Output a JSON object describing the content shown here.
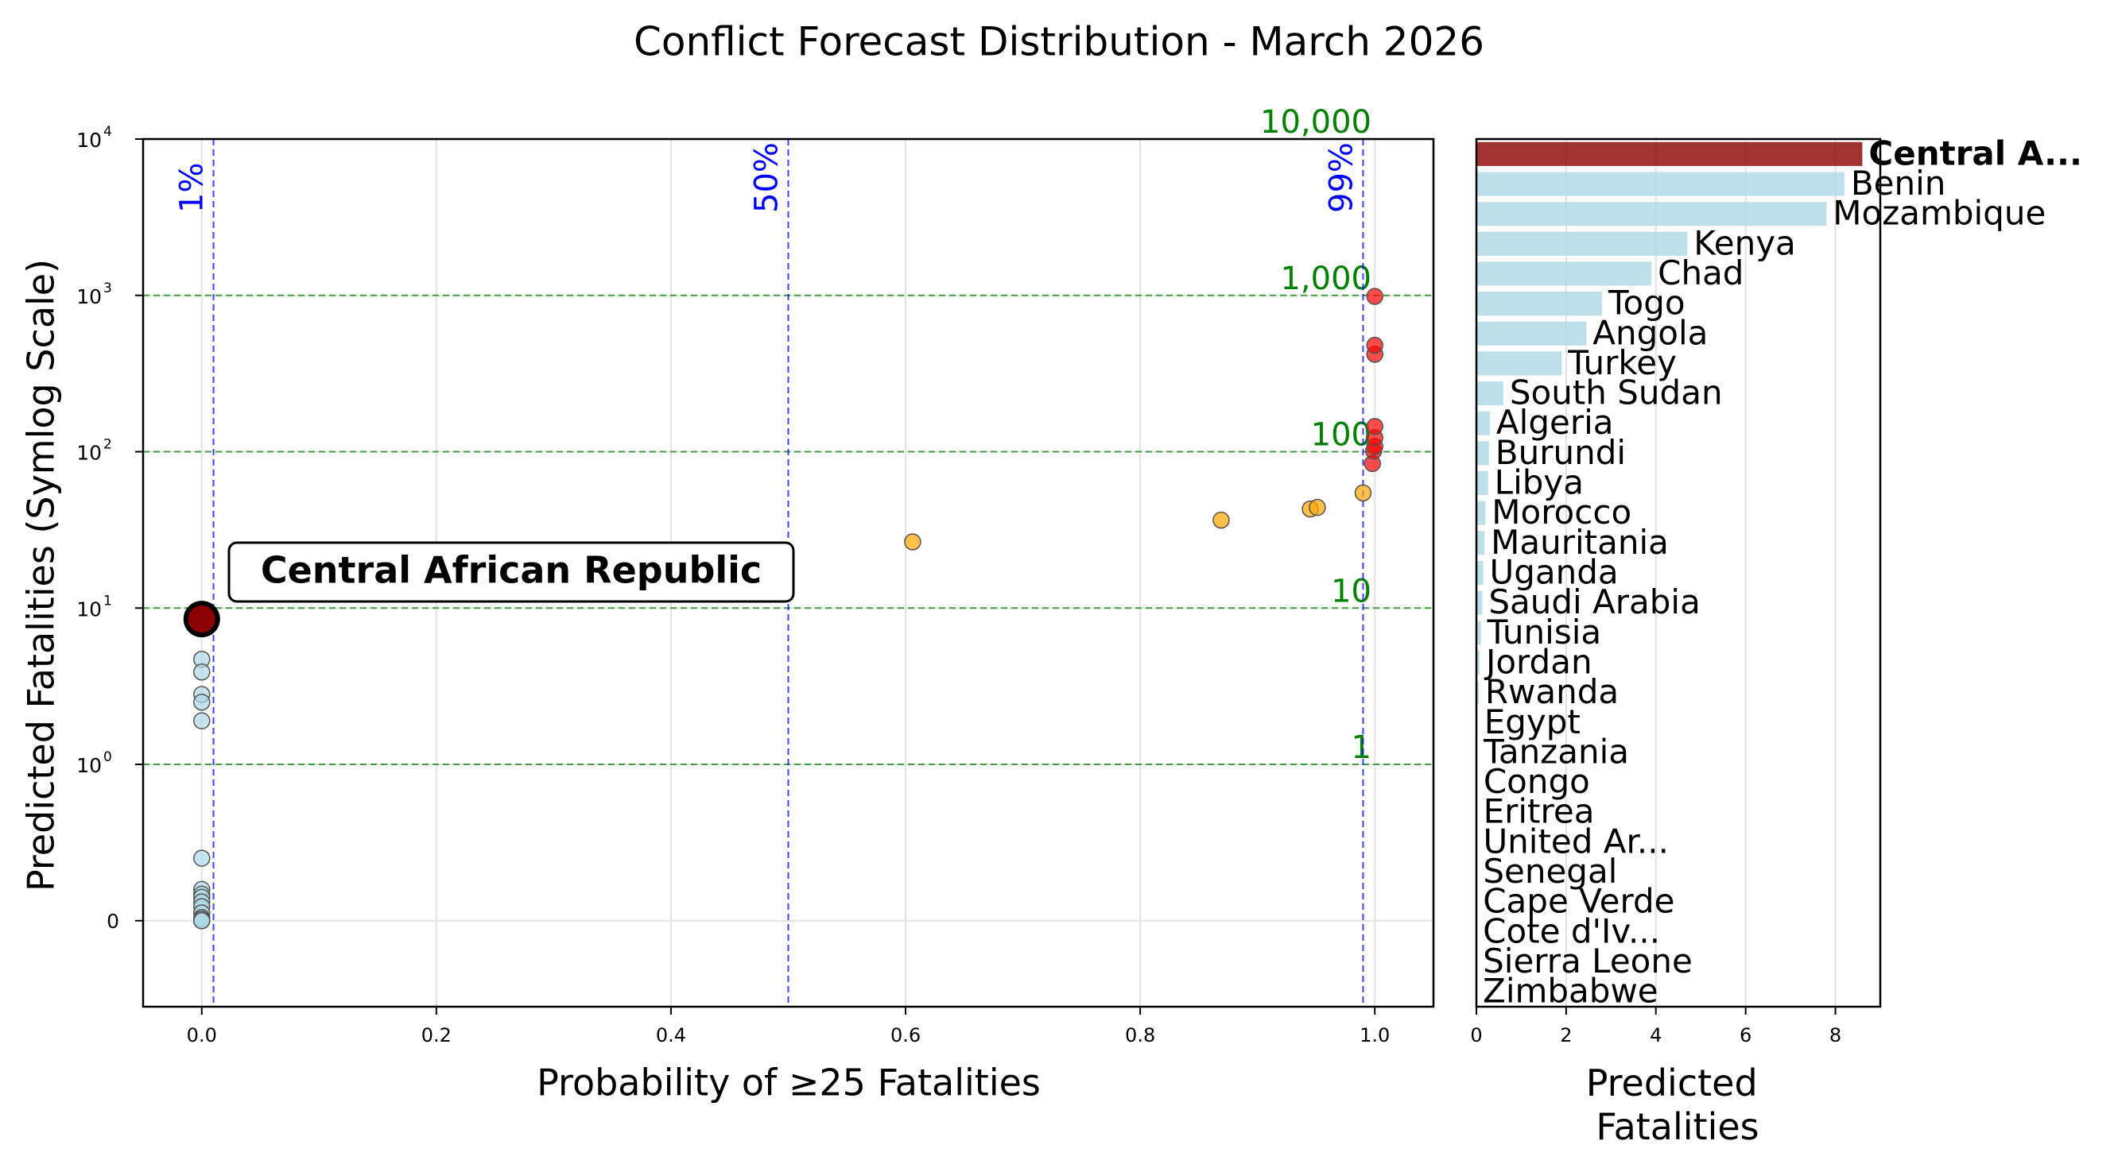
{
  "figure": {
    "title": "Conflict Forecast Distribution - March 2026"
  },
  "chart_data": [
    {
      "type": "scatter",
      "xlabel": "Probability of ≥25 Fatalities",
      "ylabel": "Predicted Fatalities (Symlog Scale)",
      "x_scale": "linear",
      "y_scale": "symlog",
      "xlim": [
        -0.05,
        1.05
      ],
      "ylim": [
        -0.55,
        10000
      ],
      "x_ticks": [
        0.0,
        0.2,
        0.4,
        0.6,
        0.8,
        1.0
      ],
      "x_tick_labels": [
        "0.0",
        "0.2",
        "0.4",
        "0.6",
        "0.8",
        "1.0"
      ],
      "y_ticks": [
        0,
        1,
        10,
        100,
        1000,
        10000
      ],
      "y_tick_labels": [
        {
          "base": "0",
          "exp": ""
        },
        {
          "base": "10",
          "exp": "0"
        },
        {
          "base": "10",
          "exp": "1"
        },
        {
          "base": "10",
          "exp": "2"
        },
        {
          "base": "10",
          "exp": "3"
        },
        {
          "base": "10",
          "exp": "4"
        }
      ],
      "grid": true,
      "vertical_reference_lines": [
        {
          "x": 0.01,
          "label": "1%",
          "color": "#0000ff"
        },
        {
          "x": 0.5,
          "label": "50%",
          "color": "#0000ff"
        },
        {
          "x": 0.99,
          "label": "99%",
          "color": "#0000ff"
        }
      ],
      "horizontal_reference_lines": [
        {
          "y": 1,
          "label": "1",
          "color": "#008000"
        },
        {
          "y": 10,
          "label": "10",
          "color": "#008000"
        },
        {
          "y": 100,
          "label": "100",
          "color": "#008000"
        },
        {
          "y": 1000,
          "label": "1,000",
          "color": "#008000"
        },
        {
          "y": 10000,
          "label": "10,000",
          "color": "#008000"
        }
      ],
      "colors": {
        "low": "#add8e6",
        "medium": "#ffa500",
        "high": "#ff0000",
        "highlight": "#8b0000"
      },
      "points": [
        {
          "x": 0.0,
          "y": 4.7,
          "group": "low"
        },
        {
          "x": 0.0,
          "y": 3.9,
          "group": "low"
        },
        {
          "x": 0.0,
          "y": 2.8,
          "group": "low"
        },
        {
          "x": 0.0,
          "y": 2.5,
          "group": "low"
        },
        {
          "x": 0.0,
          "y": 1.9,
          "group": "low"
        },
        {
          "x": 0.0,
          "y": 0.4,
          "group": "low"
        },
        {
          "x": 0.0,
          "y": 0.2,
          "group": "low"
        },
        {
          "x": 0.0,
          "y": 0.17,
          "group": "low"
        },
        {
          "x": 0.0,
          "y": 0.15,
          "group": "low"
        },
        {
          "x": 0.0,
          "y": 0.12,
          "group": "low"
        },
        {
          "x": 0.0,
          "y": 0.09,
          "group": "low"
        },
        {
          "x": 0.0,
          "y": 0.05,
          "group": "low"
        },
        {
          "x": 0.0,
          "y": 0.02,
          "group": "low"
        },
        {
          "x": 0.0,
          "y": 0.01,
          "group": "low"
        },
        {
          "x": 0.0,
          "y": 0.0,
          "group": "low"
        },
        {
          "x": 0.0,
          "y": 0.0,
          "group": "low"
        },
        {
          "x": 0.606,
          "y": 26.5,
          "group": "medium"
        },
        {
          "x": 0.869,
          "y": 36.5,
          "group": "medium"
        },
        {
          "x": 0.945,
          "y": 43.0,
          "group": "medium"
        },
        {
          "x": 0.951,
          "y": 44.0,
          "group": "medium"
        },
        {
          "x": 0.99,
          "y": 54.5,
          "group": "medium"
        },
        {
          "x": 0.998,
          "y": 84.0,
          "group": "high"
        },
        {
          "x": 0.999,
          "y": 101.0,
          "group": "high"
        },
        {
          "x": 1.0,
          "y": 108.0,
          "group": "high"
        },
        {
          "x": 1.0,
          "y": 123.0,
          "group": "high"
        },
        {
          "x": 1.0,
          "y": 145.0,
          "group": "high"
        },
        {
          "x": 1.0,
          "y": 420.0,
          "group": "high"
        },
        {
          "x": 1.0,
          "y": 480.0,
          "group": "high"
        },
        {
          "x": 1.0,
          "y": 985.0,
          "group": "high"
        }
      ],
      "highlight": {
        "x": 0.0,
        "y": 8.5,
        "label": "Central African Republic"
      }
    },
    {
      "type": "bar",
      "orientation": "horizontal",
      "xlabel_lines": [
        "Predicted",
        "Fatalities"
      ],
      "xlim": [
        0,
        9
      ],
      "x_ticks": [
        0,
        2,
        4,
        6,
        8
      ],
      "grid": true,
      "bar_color": "#add8e6",
      "highlight_color": "#8b0000",
      "categories": [
        "Central A...",
        "Benin",
        "Mozambique",
        "Kenya",
        "Chad",
        "Togo",
        "Angola",
        "Turkey",
        "South Sudan",
        "Algeria",
        "Burundi",
        "Libya",
        "Morocco",
        "Mauritania",
        "Uganda",
        "Saudi Arabia",
        "Tunisia",
        "Jordan",
        "Rwanda",
        "Egypt",
        "Tanzania",
        "Congo",
        "Eritrea",
        "United Ar...",
        "Senegal",
        "Cape Verde",
        "Cote d'Iv...",
        "Sierra Leone",
        "Zimbabwe"
      ],
      "values": [
        8.6,
        8.2,
        7.8,
        4.7,
        3.9,
        2.8,
        2.45,
        1.9,
        0.6,
        0.3,
        0.28,
        0.26,
        0.2,
        0.18,
        0.15,
        0.13,
        0.1,
        0.07,
        0.05,
        0.03,
        0.02,
        0.015,
        0.01,
        0.008,
        0.006,
        0.004,
        0.003,
        0.002,
        0.001
      ],
      "highlight_index": 0
    }
  ]
}
